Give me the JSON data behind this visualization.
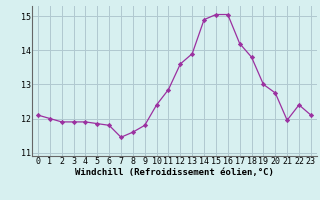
{
  "x": [
    0,
    1,
    2,
    3,
    4,
    5,
    6,
    7,
    8,
    9,
    10,
    11,
    12,
    13,
    14,
    15,
    16,
    17,
    18,
    19,
    20,
    21,
    22,
    23
  ],
  "y": [
    12.1,
    12.0,
    11.9,
    11.9,
    11.9,
    11.85,
    11.8,
    11.45,
    11.6,
    11.8,
    12.4,
    12.85,
    13.6,
    13.9,
    14.9,
    15.05,
    15.05,
    14.2,
    13.8,
    13.0,
    12.75,
    11.95,
    12.4,
    12.1
  ],
  "line_color": "#9b30a0",
  "marker": "D",
  "marker_size": 2.2,
  "bg_color": "#d7f0f0",
  "grid_color": "#b0c8d0",
  "xlabel": "Windchill (Refroidissement éolien,°C)",
  "xlabel_fontsize": 6.5,
  "tick_fontsize": 6.0,
  "ylim": [
    10.9,
    15.3
  ],
  "yticks": [
    11,
    12,
    13,
    14,
    15
  ],
  "xticks": [
    0,
    1,
    2,
    3,
    4,
    5,
    6,
    7,
    8,
    9,
    10,
    11,
    12,
    13,
    14,
    15,
    16,
    17,
    18,
    19,
    20,
    21,
    22,
    23
  ]
}
